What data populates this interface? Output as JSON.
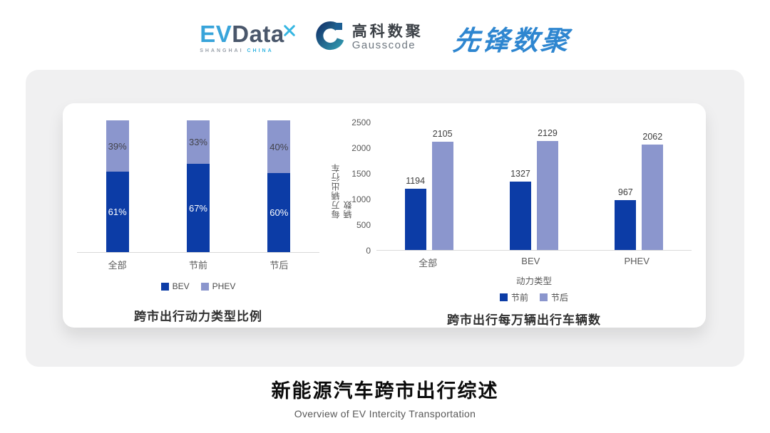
{
  "header": {
    "evdata": {
      "part1": "EV",
      "part2": "Data",
      "sub_left": "SHANGHAI",
      "sub_right": "CHINA"
    },
    "gausscode": {
      "cn": "高科数聚",
      "en": "Gausscode"
    },
    "xianfeng": {
      "text": "先锋数聚"
    }
  },
  "colors": {
    "bev_dark_blue": "#0c3ca6",
    "phev_light_blue": "#8b96cd",
    "card_gray": "#f0f0f1",
    "axis_line": "#d9d9d9",
    "evdata_blue": "#38a4da",
    "evdata_slate": "#4a576b",
    "gauss_navy": "#14386e",
    "gauss_teal": "#2f93ab",
    "xianfeng_blue": "#2e86d0"
  },
  "chart_data": [
    {
      "type": "bar",
      "variant": "stacked-percent",
      "title": "跨市出行动力类型比例",
      "categories": [
        "全部",
        "节前",
        "节后"
      ],
      "series": [
        {
          "name": "BEV",
          "color": "#0c3ca6",
          "values": [
            61,
            67,
            60
          ],
          "labels": [
            "61%",
            "67%",
            "60%"
          ]
        },
        {
          "name": "PHEV",
          "color": "#8b96cd",
          "values": [
            39,
            33,
            40
          ],
          "labels": [
            "39%",
            "33%",
            "40%"
          ]
        }
      ],
      "ylim": [
        0,
        100
      ],
      "legend_position": "bottom",
      "grid": false
    },
    {
      "type": "bar",
      "variant": "grouped",
      "title": "跨市出行每万辆出行车辆数",
      "categories": [
        "全部",
        "BEV",
        "PHEV"
      ],
      "xlabel": "动力类型",
      "ylabel": "每万辆出行车辆数",
      "yticks": [
        0,
        500,
        1000,
        1500,
        2000,
        2500
      ],
      "ylim": [
        0,
        2500
      ],
      "series": [
        {
          "name": "节前",
          "color": "#0c3ca6",
          "values": [
            1194,
            1327,
            967
          ]
        },
        {
          "name": "节后",
          "color": "#8b96cd",
          "values": [
            2105,
            2129,
            2062
          ]
        }
      ],
      "legend_position": "bottom",
      "grid": false
    }
  ],
  "footer": {
    "title": "新能源汽车跨市出行综述",
    "subtitle": "Overview of EV Intercity Transportation"
  }
}
